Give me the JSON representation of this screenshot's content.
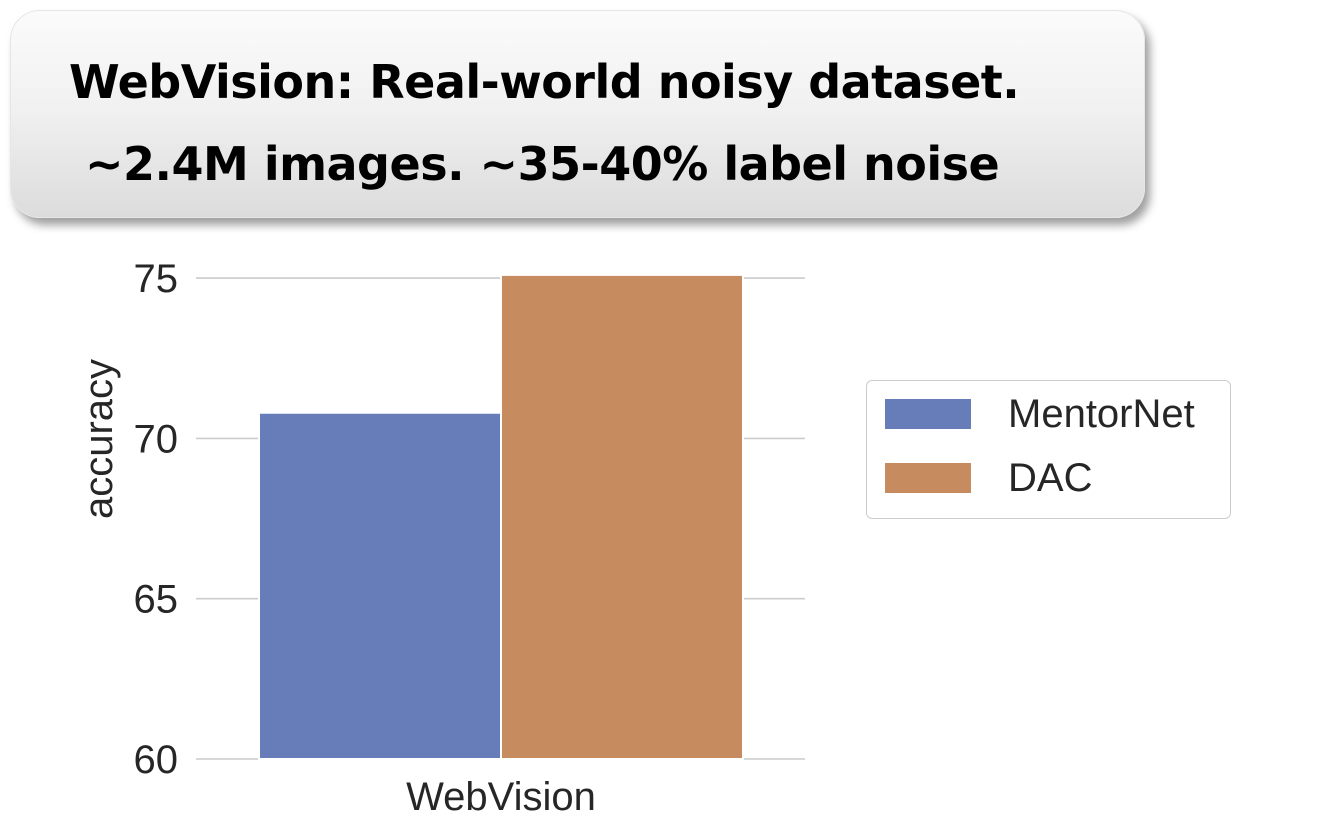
{
  "banner": {
    "line1": "WebVision: Real-world noisy dataset.",
    "line2": "~2.4M images. ~35-40% label noise"
  },
  "chart_data": {
    "type": "bar",
    "categories": [
      "WebVision"
    ],
    "series": [
      {
        "name": "MentorNet",
        "values": [
          70.8
        ],
        "color": "#667dba"
      },
      {
        "name": "DAC",
        "values": [
          75.1
        ],
        "color": "#c68b5f"
      }
    ],
    "title": "",
    "xlabel": "",
    "ylabel": "accuracy",
    "ylim": [
      60,
      75.6
    ],
    "yticks": [
      "60",
      "65",
      "70",
      "75"
    ],
    "grid": true,
    "legend_position": "right"
  },
  "colors": {
    "grid": "#cccccc",
    "text": "#262626"
  }
}
